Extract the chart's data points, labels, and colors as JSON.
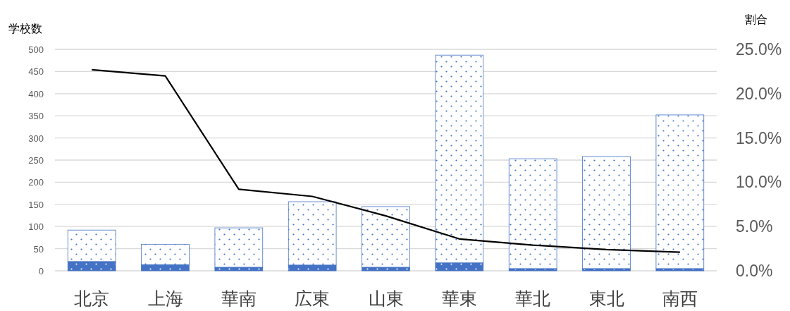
{
  "chart_data": {
    "type": "bar",
    "stacked": true,
    "ylabel": "学校数",
    "y2label": "割合",
    "categories": [
      "北京",
      "上海",
      "華南",
      "広東",
      "山東",
      "華東",
      "華北",
      "東北",
      "南西"
    ],
    "series": [
      {
        "color": "#4472c4",
        "values": [
          21,
          14,
          8,
          13,
          8,
          18,
          5,
          5,
          5
        ]
      },
      {
        "color": "#4472c4",
        "values": [
          71,
          46,
          89,
          143,
          137,
          469,
          248,
          253,
          347
        ]
      },
      {
        "type": "line",
        "axis": "y2",
        "color": "#000000",
        "values": [
          22.7,
          22.0,
          9.2,
          8.4,
          6.2,
          3.6,
          2.9,
          2.4,
          2.1
        ]
      }
    ],
    "ylim": [
      0,
      500
    ],
    "yticks": [
      0,
      50,
      100,
      150,
      200,
      250,
      300,
      350,
      400,
      450,
      500
    ],
    "y2lim": [
      0,
      25
    ],
    "y2ticks": [
      {
        "value": 0,
        "label": "0.0%"
      },
      {
        "value": 5,
        "label": "5.0%"
      },
      {
        "value": 10,
        "label": "10.0%"
      },
      {
        "value": 15,
        "label": "15.0%"
      },
      {
        "value": 20,
        "label": "20.0%"
      },
      {
        "value": 25,
        "label": "25.0%"
      }
    ],
    "grid": "y",
    "marker": "none",
    "line_style": "solid"
  }
}
